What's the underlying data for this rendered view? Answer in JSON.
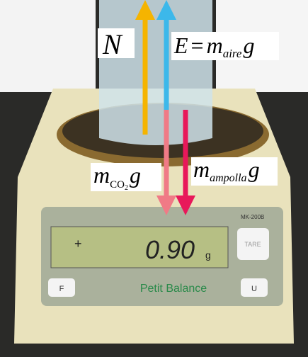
{
  "forces": {
    "normal": {
      "symbol": "N"
    },
    "buoyancy": {
      "symbol": "E",
      "equals": "=",
      "mass": "m",
      "subscript": "aire",
      "gravity": "g"
    },
    "co2_weight": {
      "mass": "m",
      "subscript": "CO",
      "subscript_index": "2",
      "gravity": "g"
    },
    "ampoule_weight": {
      "mass": "m",
      "subscript": "ampolla",
      "gravity": "g"
    }
  },
  "balance": {
    "reading": "0.90",
    "unit": "g",
    "name": "Petit Balance",
    "model": "MK-200B",
    "buttons": {
      "tare": "TARE",
      "left": "F",
      "right": "U"
    }
  }
}
